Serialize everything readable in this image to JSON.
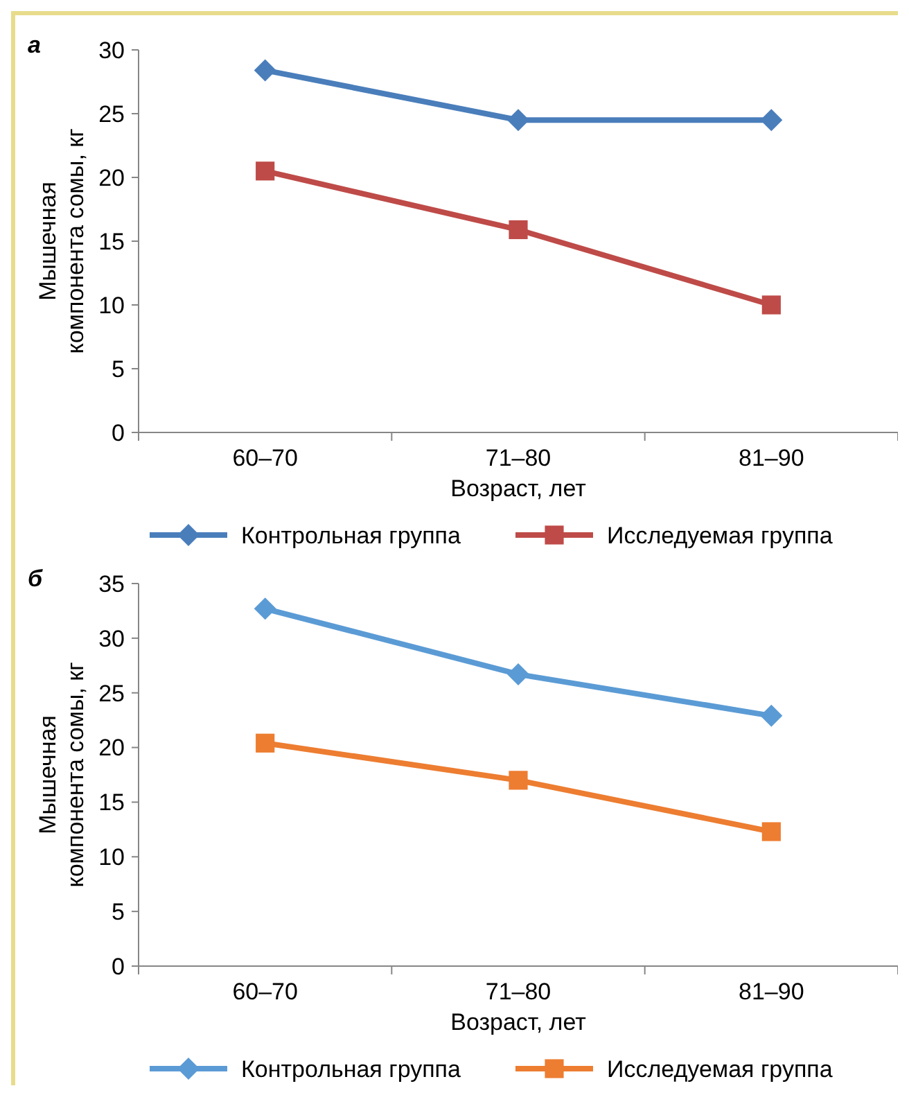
{
  "chart_data": [
    {
      "type": "line",
      "annotations": [
        "а"
      ],
      "xlabel": "Возраст, лет",
      "ylabel": "Мышечная компонента сомы, кг",
      "categories": [
        "60–70",
        "71–80",
        "81–90"
      ],
      "ylim": [
        0,
        30
      ],
      "yticks": [
        0,
        5,
        10,
        15,
        20,
        25,
        30
      ],
      "legend": "bottom",
      "grid": false,
      "series": [
        {
          "name": "Контрольная группа",
          "color": "#4a7ebb",
          "marker": "diamond",
          "values": [
            28.4,
            24.5,
            24.5
          ]
        },
        {
          "name": "Исследуемая группа",
          "color": "#be4b48",
          "marker": "square",
          "values": [
            20.5,
            15.9,
            10.0
          ]
        }
      ]
    },
    {
      "type": "line",
      "annotations": [
        "б"
      ],
      "xlabel": "Возраст, лет",
      "ylabel": "Мышечная компонента сомы, кг",
      "categories": [
        "60–70",
        "71–80",
        "81–90"
      ],
      "ylim": [
        0,
        35
      ],
      "yticks": [
        0,
        5,
        10,
        15,
        20,
        25,
        30,
        35
      ],
      "legend": "bottom",
      "grid": false,
      "series": [
        {
          "name": "Контрольная группа",
          "color": "#5b9bd5",
          "marker": "diamond",
          "values": [
            32.7,
            26.7,
            22.9
          ]
        },
        {
          "name": "Исследуемая группа",
          "color": "#ed7d31",
          "marker": "square",
          "values": [
            20.4,
            17.0,
            12.3
          ]
        }
      ]
    }
  ]
}
